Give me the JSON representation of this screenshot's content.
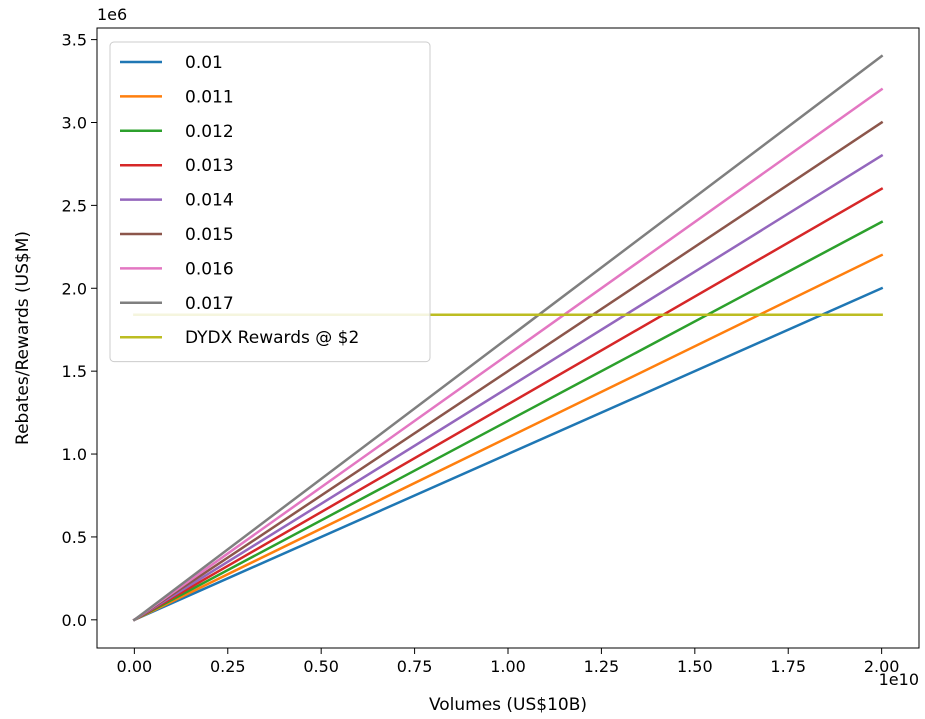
{
  "chart_data": {
    "type": "line",
    "xlabel": "Volumes (US$10B)",
    "ylabel": "Rebates/Rewards (US$M)",
    "x_offset_label": "1e10",
    "y_offset_label": "1e6",
    "x_ticks": [
      0,
      2500000000,
      5000000000,
      7500000000,
      10000000000,
      12500000000,
      15000000000,
      17500000000,
      20000000000
    ],
    "x_tick_labels": [
      "0.00",
      "0.25",
      "0.50",
      "0.75",
      "1.00",
      "1.25",
      "1.50",
      "1.75",
      "2.00"
    ],
    "y_ticks": [
      0,
      500000,
      1000000,
      1500000,
      2000000,
      2500000,
      3000000,
      3500000
    ],
    "y_tick_labels": [
      "0.0",
      "0.5",
      "1.0",
      "1.5",
      "2.0",
      "2.5",
      "3.0",
      "3.5"
    ],
    "xlim": [
      -1000000000,
      21000000000
    ],
    "ylim": [
      -170000,
      3570000
    ],
    "grid": false,
    "legend_position": "top-left",
    "series": [
      {
        "name": "0.01",
        "color": "#1f77b4",
        "x": [
          0,
          20000000000
        ],
        "y": [
          0,
          2000000
        ]
      },
      {
        "name": "0.011",
        "color": "#ff7f0e",
        "x": [
          0,
          20000000000
        ],
        "y": [
          0,
          2200000
        ]
      },
      {
        "name": "0.012",
        "color": "#2ca02c",
        "x": [
          0,
          20000000000
        ],
        "y": [
          0,
          2400000
        ]
      },
      {
        "name": "0.013",
        "color": "#d62728",
        "x": [
          0,
          20000000000
        ],
        "y": [
          0,
          2600000
        ]
      },
      {
        "name": "0.014",
        "color": "#9467bd",
        "x": [
          0,
          20000000000
        ],
        "y": [
          0,
          2800000
        ]
      },
      {
        "name": "0.015",
        "color": "#8c564b",
        "x": [
          0,
          20000000000
        ],
        "y": [
          0,
          3000000
        ]
      },
      {
        "name": "0.016",
        "color": "#e377c2",
        "x": [
          0,
          20000000000
        ],
        "y": [
          0,
          3200000
        ]
      },
      {
        "name": "0.017",
        "color": "#7f7f7f",
        "x": [
          0,
          20000000000
        ],
        "y": [
          0,
          3400000
        ]
      },
      {
        "name": "DYDX Rewards @ $2",
        "color": "#bcbd22",
        "x": [
          0,
          20000000000
        ],
        "y": [
          1840000,
          1840000
        ]
      }
    ]
  }
}
